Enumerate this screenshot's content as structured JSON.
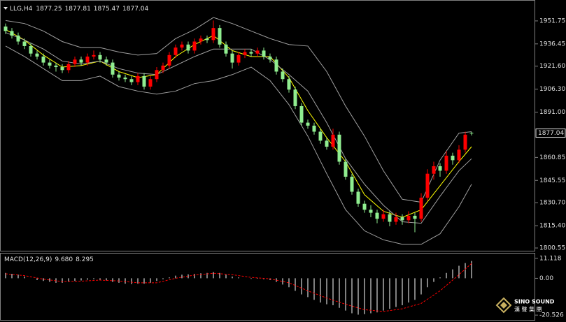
{
  "chart_data": [
    {
      "type": "candlestick",
      "title": "LLG,H4",
      "candles": [
        [
          1948,
          1950,
          1943,
          1945
        ],
        [
          1945,
          1947,
          1940,
          1942
        ],
        [
          1942,
          1944,
          1936,
          1938
        ],
        [
          1938,
          1940,
          1933,
          1935
        ],
        [
          1935,
          1937,
          1928,
          1930
        ],
        [
          1930,
          1932,
          1926,
          1928
        ],
        [
          1928,
          1930,
          1922,
          1924
        ],
        [
          1924,
          1926,
          1920,
          1922
        ],
        [
          1922,
          1924,
          1918,
          1921
        ],
        [
          1921,
          1923,
          1917,
          1919
        ],
        [
          1919,
          1925,
          1917,
          1923
        ],
        [
          1923,
          1928,
          1921,
          1926
        ],
        [
          1926,
          1928,
          1922,
          1924
        ],
        [
          1924,
          1930,
          1922,
          1928
        ],
        [
          1928,
          1932,
          1926,
          1929
        ],
        [
          1929,
          1931,
          1924,
          1926
        ],
        [
          1926,
          1928,
          1922,
          1924
        ],
        [
          1924,
          1926,
          1914,
          1916
        ],
        [
          1916,
          1918,
          1912,
          1914
        ],
        [
          1914,
          1916,
          1911,
          1913
        ],
        [
          1913,
          1915,
          1909,
          1911
        ],
        [
          1911,
          1917,
          1909,
          1915
        ],
        [
          1915,
          1917,
          1906,
          1908
        ],
        [
          1908,
          1915,
          1906,
          1913
        ],
        [
          1913,
          1921,
          1911,
          1919
        ],
        [
          1919,
          1924,
          1917,
          1922
        ],
        [
          1922,
          1931,
          1920,
          1929
        ],
        [
          1929,
          1936,
          1927,
          1934
        ],
        [
          1934,
          1938,
          1932,
          1936
        ],
        [
          1936,
          1938,
          1930,
          1932
        ],
        [
          1932,
          1940,
          1930,
          1938
        ],
        [
          1938,
          1942,
          1936,
          1940
        ],
        [
          1940,
          1942,
          1937,
          1939
        ],
        [
          1939,
          1952,
          1937,
          1947
        ],
        [
          1947,
          1949,
          1934,
          1936
        ],
        [
          1936,
          1938,
          1928,
          1930
        ],
        [
          1930,
          1932,
          1920,
          1924
        ],
        [
          1924,
          1931,
          1922,
          1929
        ],
        [
          1929,
          1933,
          1927,
          1931
        ],
        [
          1931,
          1933,
          1928,
          1930
        ],
        [
          1930,
          1934,
          1928,
          1932
        ],
        [
          1932,
          1934,
          1926,
          1928
        ],
        [
          1928,
          1930,
          1924,
          1926
        ],
        [
          1926,
          1928,
          1916,
          1918
        ],
        [
          1918,
          1920,
          1911,
          1913
        ],
        [
          1913,
          1915,
          1904,
          1906
        ],
        [
          1906,
          1908,
          1893,
          1895
        ],
        [
          1895,
          1897,
          1882,
          1884
        ],
        [
          1884,
          1886,
          1880,
          1882
        ],
        [
          1882,
          1884,
          1876,
          1878
        ],
        [
          1878,
          1880,
          1870,
          1872
        ],
        [
          1872,
          1874,
          1866,
          1868
        ],
        [
          1868,
          1880,
          1866,
          1876
        ],
        [
          1876,
          1878,
          1856,
          1858
        ],
        [
          1858,
          1860,
          1846,
          1848
        ],
        [
          1848,
          1850,
          1836,
          1838
        ],
        [
          1838,
          1840,
          1828,
          1830
        ],
        [
          1830,
          1832,
          1824,
          1826
        ],
        [
          1826,
          1829,
          1821,
          1824
        ],
        [
          1824,
          1826,
          1817,
          1820
        ],
        [
          1820,
          1826,
          1818,
          1823
        ],
        [
          1823,
          1825,
          1815,
          1818
        ],
        [
          1818,
          1824,
          1816,
          1821
        ],
        [
          1821,
          1823,
          1816,
          1819
        ],
        [
          1819,
          1825,
          1817,
          1822
        ],
        [
          1822,
          1824,
          1811,
          1820
        ],
        [
          1820,
          1837,
          1818,
          1834
        ],
        [
          1834,
          1853,
          1832,
          1850
        ],
        [
          1850,
          1858,
          1846,
          1855
        ],
        [
          1855,
          1857,
          1848,
          1852
        ],
        [
          1852,
          1865,
          1850,
          1862
        ],
        [
          1862,
          1864,
          1856,
          1859
        ],
        [
          1859,
          1869,
          1857,
          1866
        ],
        [
          1866,
          1878,
          1864,
          1876
        ],
        [
          1877.25,
          1877.81,
          1875.47,
          1877.04
        ]
      ],
      "up_color": "#ff0000",
      "down_color": "#90ee90",
      "line_x": [
        0,
        3,
        6,
        9,
        12,
        15,
        18,
        21,
        24,
        27,
        30,
        33,
        36,
        39,
        42,
        45,
        48,
        51,
        54,
        57,
        60,
        63,
        66,
        69,
        72,
        74
      ],
      "lines": [
        {
          "color": "#ffff00",
          "values": [
            1946,
            1939,
            1929,
            1921,
            1922,
            1925,
            1918,
            1914,
            1916,
            1928,
            1936,
            1942,
            1932,
            1928,
            1928,
            1914,
            1892,
            1874,
            1858,
            1836,
            1825,
            1821,
            1826,
            1842,
            1858,
            1868
          ]
        },
        {
          "color": "#a0a0a0",
          "values": [
            1952,
            1950,
            1945,
            1938,
            1934,
            1934,
            1931,
            1929,
            1930,
            1940,
            1946,
            1954,
            1950,
            1945,
            1940,
            1936,
            1935,
            1918,
            1895,
            1875,
            1852,
            1833,
            1831,
            1859,
            1877,
            1878
          ]
        },
        {
          "color": "#a0a0a0",
          "values": [
            1944,
            1939,
            1933,
            1925,
            1923,
            1925,
            1920,
            1917,
            1916,
            1922,
            1928,
            1933,
            1933,
            1933,
            1926,
            1916,
            1905,
            1884,
            1860,
            1843,
            1829,
            1818,
            1817,
            1835,
            1852,
            1860
          ]
        },
        {
          "color": "#a0a0a0",
          "values": [
            1935,
            1928,
            1920,
            1912,
            1912,
            1915,
            1908,
            1905,
            1903,
            1905,
            1910,
            1912,
            1916,
            1921,
            1912,
            1896,
            1875,
            1850,
            1826,
            1812,
            1806,
            1803,
            1803,
            1810,
            1828,
            1843
          ]
        }
      ],
      "ylim": [
        1798.7,
        1965.2
      ],
      "yticks": [
        1951.75,
        1936.45,
        {
          "value": 1921.6,
          "label": "1921.60"
        },
        {
          "value": 1906.3,
          "label": "1906.30"
        },
        {
          "value": 1891,
          "label": "1891.00"
        },
        1860.85,
        1845.55,
        {
          "value": 1830.7,
          "label": "1830.70"
        },
        {
          "value": 1815.4,
          "label": "1815.40"
        },
        1800.55
      ]
    },
    {
      "type": "macd",
      "title": "MACD(12,26,9)",
      "readout": [
        {
          "value": 9.68,
          "label": "9.680"
        },
        {
          "value": 8.295,
          "label": "8.295"
        }
      ],
      "color": "#ffffff",
      "values": [
        3,
        2.5,
        2,
        1,
        0,
        -1,
        -1.5,
        -2,
        -2.5,
        -2.5,
        -2,
        -1.5,
        -1.2,
        -0.8,
        -0.5,
        -0.8,
        -1.2,
        -2,
        -2.5,
        -3,
        -3.2,
        -3,
        -3,
        -2.5,
        -1.5,
        -0.5,
        0.5,
        1.5,
        2,
        2.2,
        2.5,
        2.8,
        3,
        3.5,
        3,
        2,
        1,
        0.5,
        0,
        -0.3,
        -0.2,
        -0.5,
        -1,
        -2,
        -3.5,
        -5,
        -7,
        -9,
        -10.5,
        -12,
        -13.5,
        -14.5,
        -15,
        -16.5,
        -18,
        -19.5,
        -20.3,
        -20,
        -19.5,
        -19,
        -18,
        -17,
        -16,
        -15,
        -13.5,
        -12,
        -9,
        -5,
        -2,
        0.5,
        3,
        5,
        7,
        8.5,
        9.68
      ],
      "signal": {
        "color": "#ff0000",
        "x": [
          0,
          3,
          6,
          9,
          12,
          15,
          18,
          21,
          24,
          27,
          30,
          33,
          36,
          39,
          42,
          45,
          48,
          51,
          54,
          57,
          60,
          63,
          66,
          69,
          72,
          74
        ],
        "values": [
          2.5,
          1.5,
          -0.5,
          -1.8,
          -1.6,
          -1,
          -1.5,
          -2.5,
          -2.5,
          0,
          1.8,
          2.8,
          2,
          0.5,
          -0.3,
          -2.5,
          -7,
          -11,
          -14.5,
          -17.5,
          -18.5,
          -17,
          -14,
          -7,
          2,
          8.295
        ]
      },
      "ylim": [
        -23.2,
        13.8
      ],
      "yticks": [
        11.118,
        {
          "value": 0,
          "label": "0.00"
        },
        -20.526
      ]
    }
  ],
  "watermark": {
    "brand": "SINO SOUND",
    "chinese": "漢 聲 集 團"
  }
}
